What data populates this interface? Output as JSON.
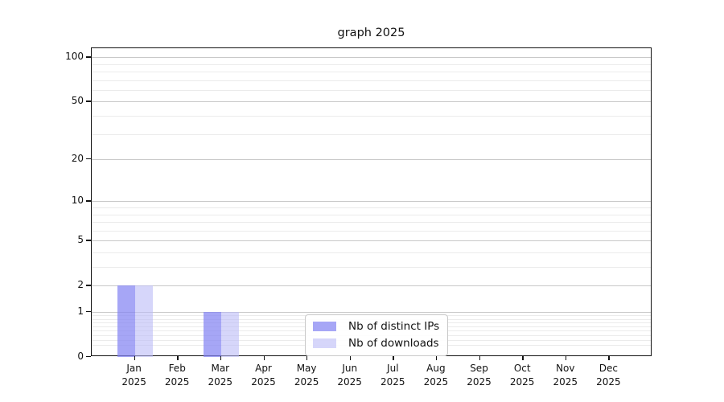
{
  "chart_data": {
    "type": "bar",
    "title": "graph 2025",
    "categories": [
      "Jan",
      "Feb",
      "Mar",
      "Apr",
      "May",
      "Jun",
      "Jul",
      "Aug",
      "Sep",
      "Oct",
      "Nov",
      "Dec"
    ],
    "category_sub_label": "2025",
    "series": [
      {
        "name": "Nb of distinct IPs",
        "color": "rgba(132,132,243,0.72)",
        "values": [
          2,
          0,
          1,
          0,
          0,
          0,
          0,
          0,
          0,
          0,
          0,
          0
        ]
      },
      {
        "name": "Nb of downloads",
        "color": "rgba(187,187,246,0.60)",
        "values": [
          2,
          0,
          1,
          0,
          0,
          0,
          0,
          0,
          0,
          0,
          0,
          0
        ]
      }
    ],
    "yscale": "log1p",
    "ylim": [
      0,
      115
    ],
    "y_major_ticks": [
      0,
      1,
      2,
      5,
      10,
      20,
      50,
      100
    ],
    "y_minor_gridlines": [
      0.2,
      0.3,
      0.4,
      0.5,
      0.6,
      0.7,
      0.8,
      0.9,
      3,
      4,
      6,
      7,
      8,
      9,
      30,
      40,
      60,
      70,
      80,
      90
    ],
    "grid": "horizontal",
    "legend_position": "lower-center",
    "colors": {
      "major_grid": "#c9c9c9",
      "minor_grid": "#ebebeb",
      "spine": "#111111",
      "text": "#111111",
      "background": "#ffffff"
    }
  }
}
